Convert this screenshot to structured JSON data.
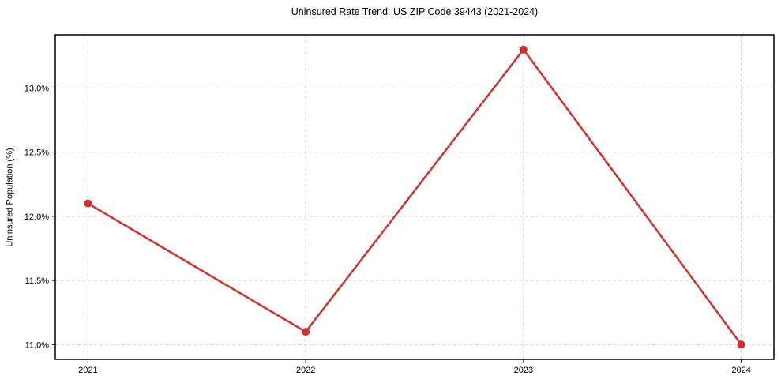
{
  "chart_data": {
    "type": "line",
    "title": "Uninsured Rate Trend: US ZIP Code 39443 (2021-2024)",
    "xlabel": "",
    "ylabel": "Uninsured Population (%)",
    "x": [
      2021,
      2022,
      2023,
      2024
    ],
    "x_tick_labels": [
      "2021",
      "2022",
      "2023",
      "2024"
    ],
    "series": [
      {
        "name": "Uninsured Population (%)",
        "values": [
          12.1,
          11.1,
          13.3,
          11.0
        ]
      }
    ],
    "y_ticks": [
      11.0,
      11.5,
      12.0,
      12.5,
      13.0
    ],
    "y_tick_labels": [
      "11.0%",
      "11.5%",
      "12.0%",
      "12.5%",
      "13.0%"
    ],
    "xlim": [
      2020.85,
      2024.15
    ],
    "ylim": [
      10.885,
      13.415
    ],
    "grid": true,
    "legend": false,
    "line_color": "#d32f2f",
    "grid_color": "#cfcfcf",
    "axis_color": "#000000",
    "marker": "circle"
  }
}
